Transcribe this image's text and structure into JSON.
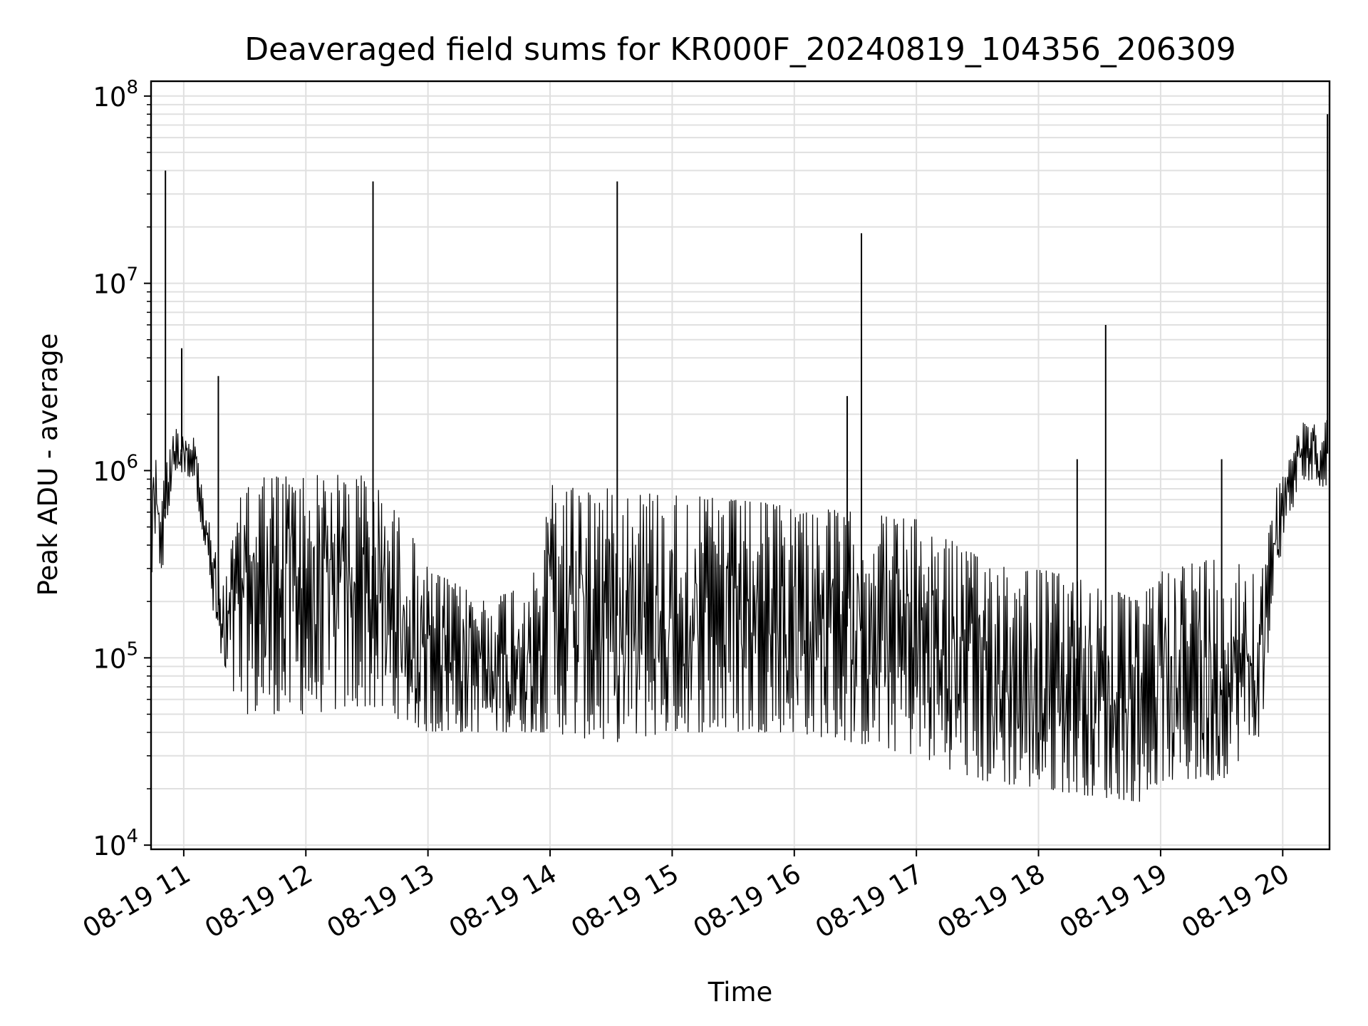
{
  "chart_data": {
    "type": "line",
    "title": "Deaveraged field sums for KR000F_20240819_104356_206309",
    "xlabel": "Time",
    "ylabel": "Peak ADU - average",
    "y_scale": "log",
    "ylim": [
      9500,
      120000000
    ],
    "xlim": [
      "2024-08-19 10:43:56",
      "2024-08-19 20:23:00"
    ],
    "grid": true,
    "legend": "none",
    "colors": {
      "line": "#000000",
      "grid": "#e0e0e0",
      "background": "#ffffff"
    },
    "x_ticks": [
      {
        "t": "2024-08-19 11:00",
        "label": "08-19 11"
      },
      {
        "t": "2024-08-19 12:00",
        "label": "08-19 12"
      },
      {
        "t": "2024-08-19 13:00",
        "label": "08-19 13"
      },
      {
        "t": "2024-08-19 14:00",
        "label": "08-19 14"
      },
      {
        "t": "2024-08-19 15:00",
        "label": "08-19 15"
      },
      {
        "t": "2024-08-19 16:00",
        "label": "08-19 16"
      },
      {
        "t": "2024-08-19 17:00",
        "label": "08-19 17"
      },
      {
        "t": "2024-08-19 18:00",
        "label": "08-19 18"
      },
      {
        "t": "2024-08-19 19:00",
        "label": "08-19 19"
      },
      {
        "t": "2024-08-19 20:00",
        "label": "08-19 20"
      }
    ],
    "y_ticks": [
      {
        "value": 10000,
        "base": "10",
        "exp": "4"
      },
      {
        "value": 100000,
        "base": "10",
        "exp": "5"
      },
      {
        "value": 1000000,
        "base": "10",
        "exp": "6"
      },
      {
        "value": 10000000,
        "base": "10",
        "exp": "7"
      },
      {
        "value": 100000000,
        "base": "10",
        "exp": "8"
      }
    ],
    "series": [
      {
        "color": "#000000",
        "envelope": [
          {
            "t": "2024-08-19 10:44",
            "low": 250000,
            "high": 1400000
          },
          {
            "t": "2024-08-19 10:50",
            "low": 300000,
            "high": 900000
          },
          {
            "t": "2024-08-19 10:55",
            "low": 1000000,
            "high": 1700000
          },
          {
            "t": "2024-08-19 11:05",
            "low": 900000,
            "high": 1600000
          },
          {
            "t": "2024-08-19 11:10",
            "low": 400000,
            "high": 700000
          },
          {
            "t": "2024-08-19 11:15",
            "low": 150000,
            "high": 400000
          },
          {
            "t": "2024-08-19 11:20",
            "low": 70000,
            "high": 250000
          },
          {
            "t": "2024-08-19 11:30",
            "low": 50000,
            "high": 950000
          },
          {
            "t": "2024-08-19 12:00",
            "low": 50000,
            "high": 950000
          },
          {
            "t": "2024-08-19 12:30",
            "low": 55000,
            "high": 950000
          },
          {
            "t": "2024-08-19 12:50",
            "low": 45000,
            "high": 500000
          },
          {
            "t": "2024-08-19 13:00",
            "low": 40000,
            "high": 300000
          },
          {
            "t": "2024-08-19 13:30",
            "low": 40000,
            "high": 200000
          },
          {
            "t": "2024-08-19 13:55",
            "low": 40000,
            "high": 300000
          },
          {
            "t": "2024-08-19 14:00",
            "low": 40000,
            "high": 850000
          },
          {
            "t": "2024-08-19 14:30",
            "low": 35000,
            "high": 800000
          },
          {
            "t": "2024-08-19 15:00",
            "low": 40000,
            "high": 750000
          },
          {
            "t": "2024-08-19 15:30",
            "low": 40000,
            "high": 700000
          },
          {
            "t": "2024-08-19 16:00",
            "low": 40000,
            "high": 650000
          },
          {
            "t": "2024-08-19 16:30",
            "low": 35000,
            "high": 600000
          },
          {
            "t": "2024-08-19 17:00",
            "low": 30000,
            "high": 550000
          },
          {
            "t": "2024-08-19 17:30",
            "low": 22000,
            "high": 350000
          },
          {
            "t": "2024-08-19 18:00",
            "low": 20000,
            "high": 300000
          },
          {
            "t": "2024-08-19 18:30",
            "low": 18000,
            "high": 250000
          },
          {
            "t": "2024-08-19 18:50",
            "low": 17000,
            "high": 200000
          },
          {
            "t": "2024-08-19 19:00",
            "low": 22000,
            "high": 300000
          },
          {
            "t": "2024-08-19 19:30",
            "low": 22000,
            "high": 350000
          },
          {
            "t": "2024-08-19 19:50",
            "low": 40000,
            "high": 300000
          },
          {
            "t": "2024-08-19 19:55",
            "low": 200000,
            "high": 600000
          },
          {
            "t": "2024-08-19 20:00",
            "low": 400000,
            "high": 1300000
          },
          {
            "t": "2024-08-19 20:10",
            "low": 900000,
            "high": 1800000
          },
          {
            "t": "2024-08-19 20:22",
            "low": 800000,
            "high": 1900000
          }
        ],
        "spikes": [
          {
            "t": "2024-08-19 10:51",
            "value": 40000000
          },
          {
            "t": "2024-08-19 10:59",
            "value": 4500000
          },
          {
            "t": "2024-08-19 11:17",
            "value": 3200000
          },
          {
            "t": "2024-08-19 12:33",
            "value": 35000000
          },
          {
            "t": "2024-08-19 14:33",
            "value": 35000000
          },
          {
            "t": "2024-08-19 16:26",
            "value": 2500000
          },
          {
            "t": "2024-08-19 16:33",
            "value": 18500000
          },
          {
            "t": "2024-08-19 18:19",
            "value": 1150000
          },
          {
            "t": "2024-08-19 18:33",
            "value": 6000000
          },
          {
            "t": "2024-08-19 19:30",
            "value": 1150000
          },
          {
            "t": "2024-08-19 20:22",
            "value": 80000000
          }
        ]
      }
    ]
  }
}
